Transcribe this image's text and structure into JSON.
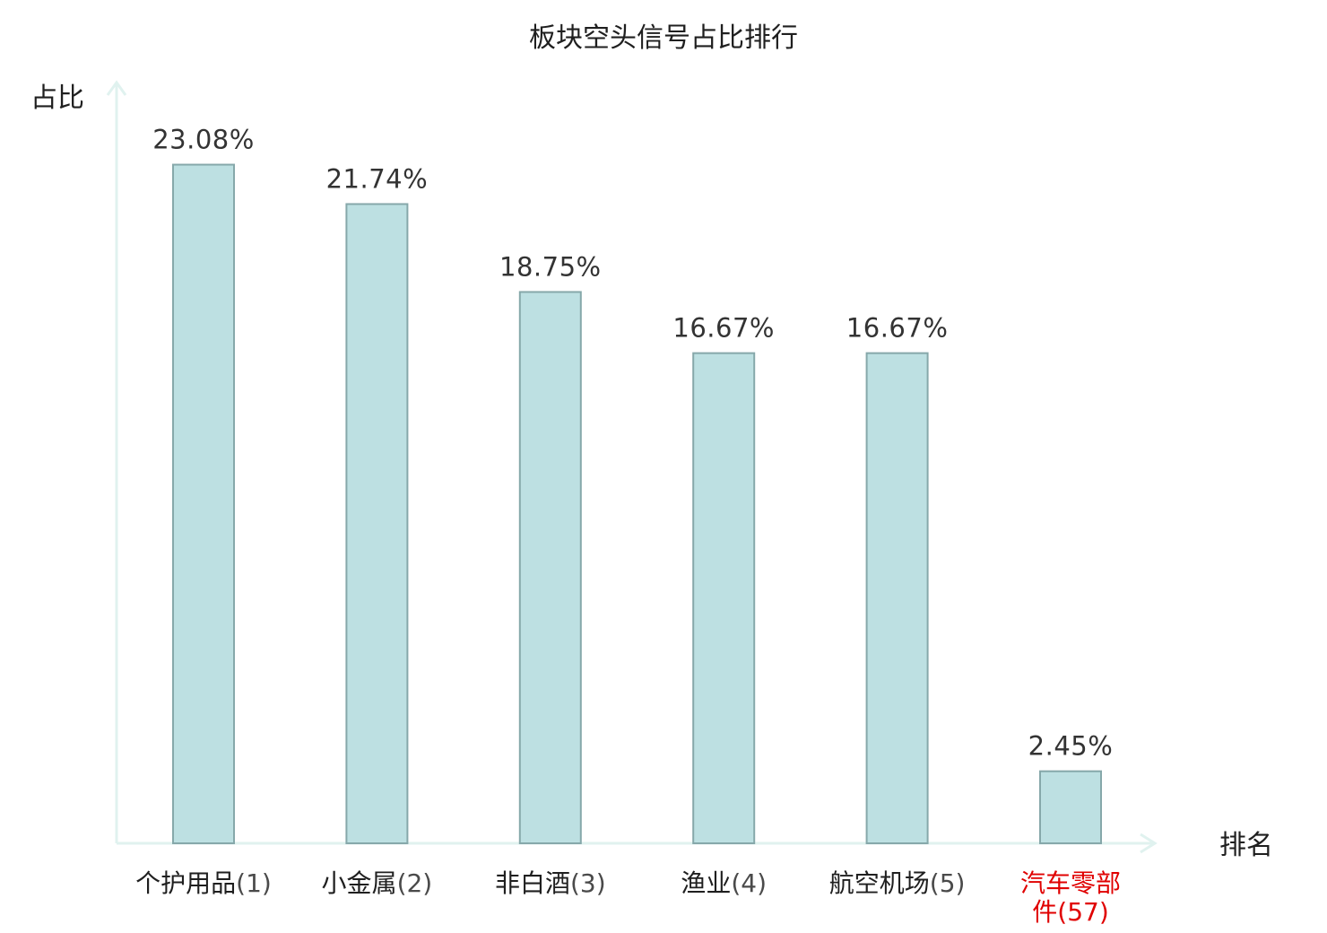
{
  "colors": {
    "bar_fill": "#bde0e2",
    "bar_stroke": "#86a8aa",
    "axis": "#e0f2ef",
    "text": "#1f1f1f",
    "highlight": "#e00000"
  },
  "chart_data": {
    "type": "bar",
    "title": "板块空头信号占比排行",
    "ylabel": "占比",
    "xlabel": "排名",
    "ylim": [
      0,
      24.5
    ],
    "grid": false,
    "categories": [
      {
        "name": "个护用品",
        "rank": "(1)",
        "highlight": false
      },
      {
        "name": "小金属",
        "rank": "(2)",
        "highlight": false
      },
      {
        "name": "非白酒",
        "rank": "(3)",
        "highlight": false
      },
      {
        "name": "渔业",
        "rank": "(4)",
        "highlight": false
      },
      {
        "name": "航空机场",
        "rank": "(5)",
        "highlight": false
      },
      {
        "name": "汽车零部件",
        "rank": "(57)",
        "highlight": true
      }
    ],
    "values": [
      23.08,
      21.74,
      18.75,
      16.67,
      16.67,
      2.45
    ],
    "value_labels": [
      "23.08%",
      "21.74%",
      "18.75%",
      "16.67%",
      "16.67%",
      "2.45%"
    ]
  }
}
